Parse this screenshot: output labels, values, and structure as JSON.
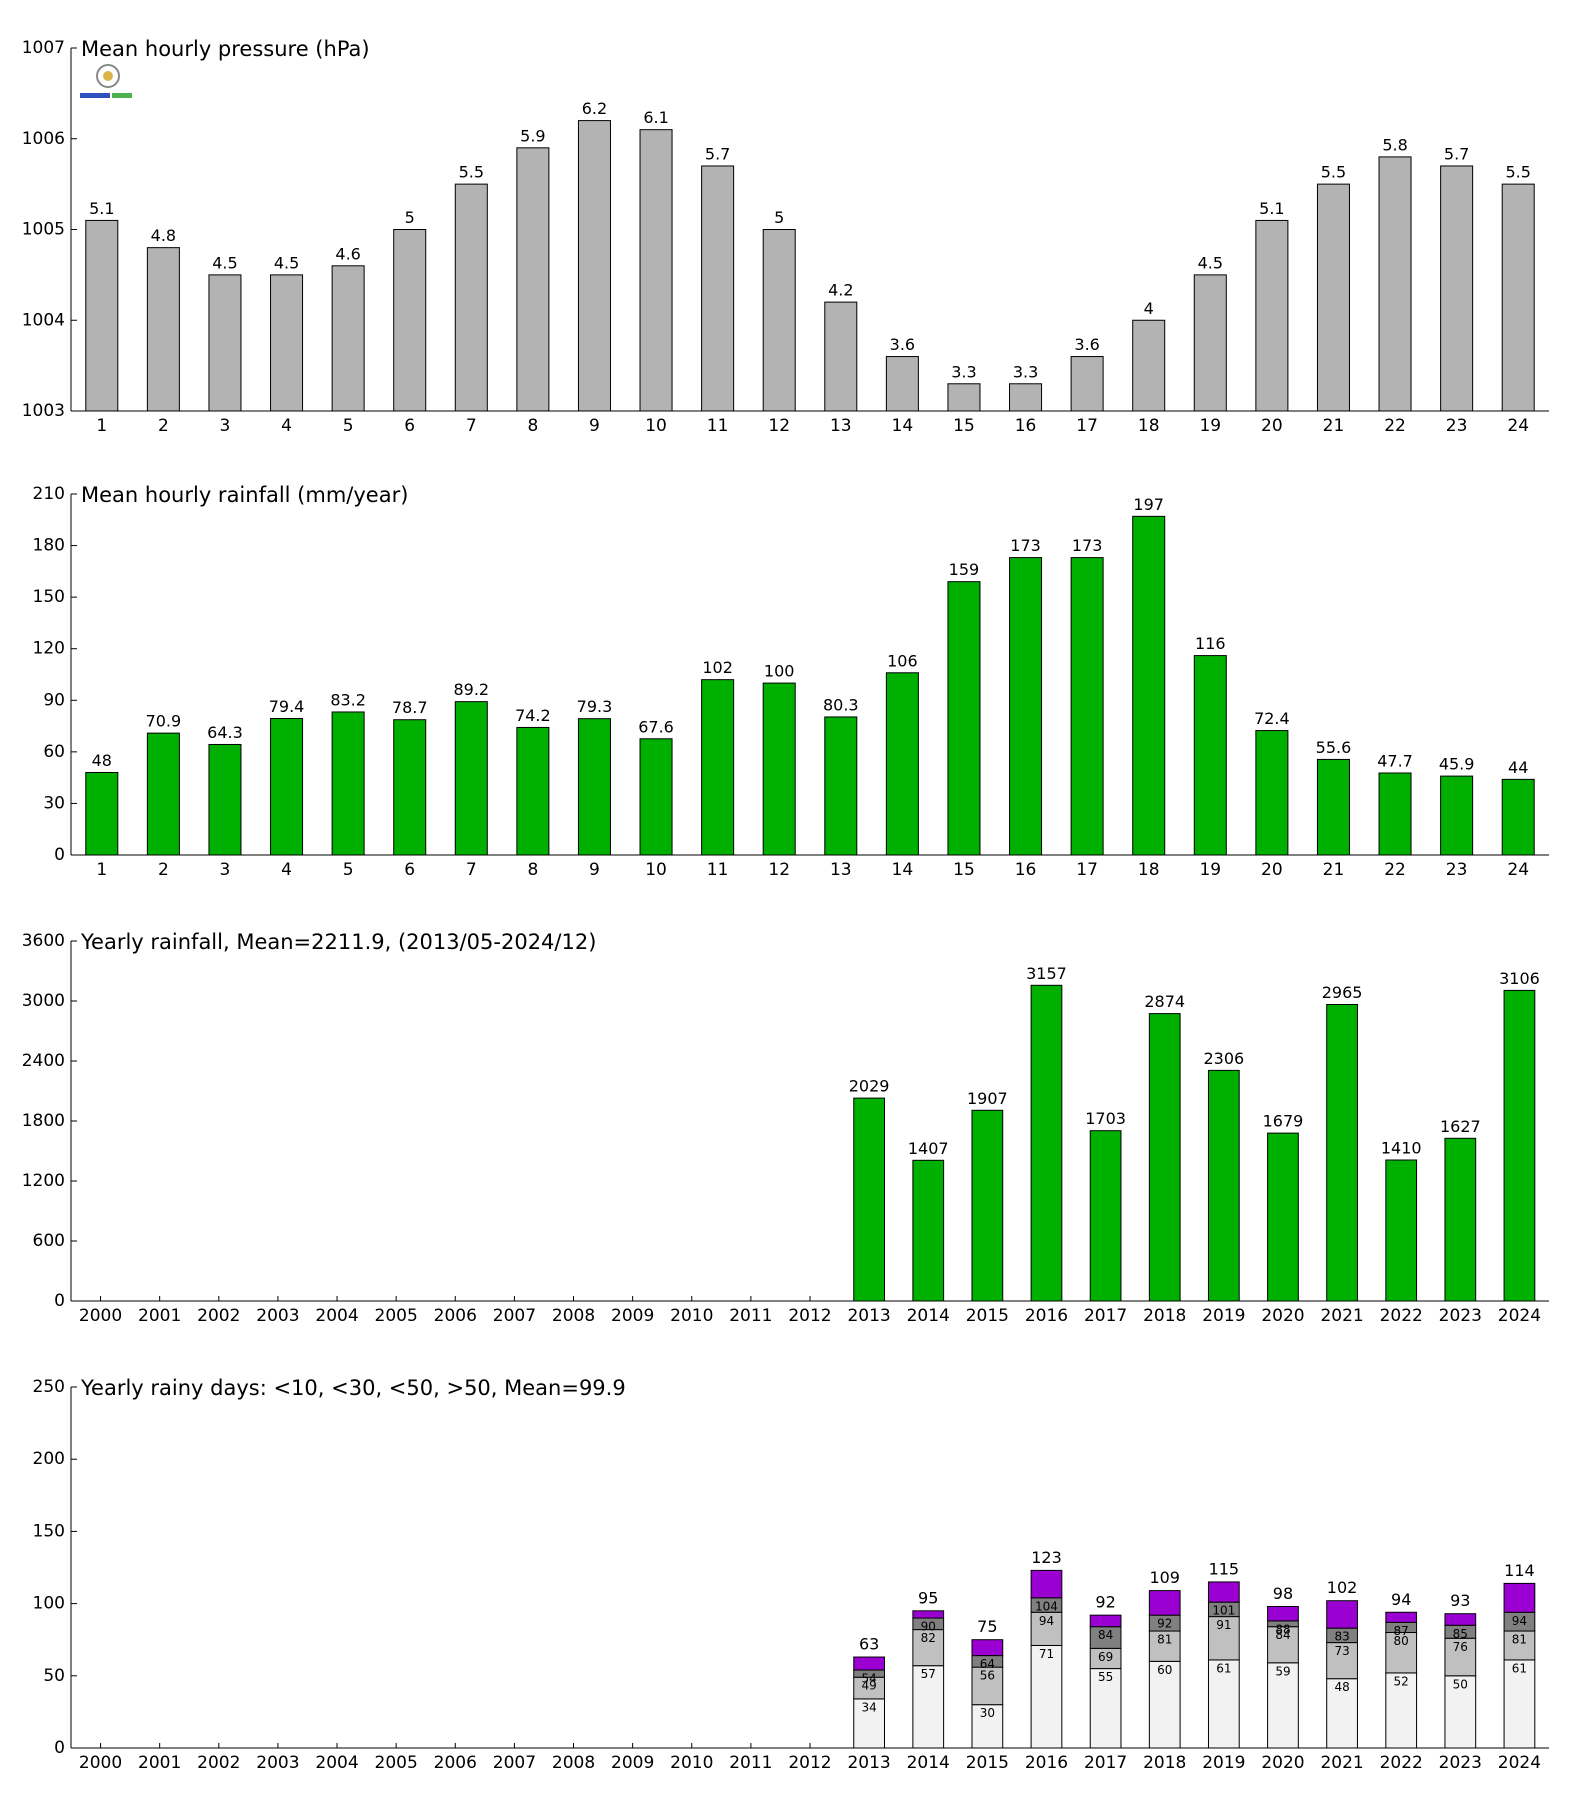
{
  "chart_data": [
    {
      "type": "bar",
      "title": "Mean hourly pressure (hPa)",
      "color": "#b3b3b3",
      "categories": [
        "1",
        "2",
        "3",
        "4",
        "5",
        "6",
        "7",
        "8",
        "9",
        "10",
        "11",
        "12",
        "13",
        "14",
        "15",
        "16",
        "17",
        "18",
        "19",
        "20",
        "21",
        "22",
        "23",
        "24"
      ],
      "values": [
        1005.1,
        1004.8,
        1004.5,
        1004.5,
        1004.6,
        1005,
        1005.5,
        1005.9,
        1006.2,
        1006.1,
        1005.7,
        1005,
        1004.2,
        1003.6,
        1003.3,
        1003.3,
        1003.6,
        1004,
        1004.5,
        1005.1,
        1005.5,
        1005.8,
        1005.7,
        1005.5
      ],
      "value_labels": [
        "5.1",
        "4.8",
        "4.5",
        "4.5",
        "4.6",
        "5",
        "5.5",
        "5.9",
        "6.2",
        "6.1",
        "5.7",
        "5",
        "4.2",
        "3.6",
        "3.3",
        "3.3",
        "3.6",
        "4",
        "4.5",
        "5.1",
        "5.5",
        "5.8",
        "5.7",
        "5.5"
      ],
      "ylim": [
        1003,
        1007
      ],
      "yticks": [
        1003,
        1004,
        1005,
        1006,
        1007
      ]
    },
    {
      "type": "bar",
      "title": "Mean hourly rainfall (mm/year)",
      "color": "#00b000",
      "categories": [
        "1",
        "2",
        "3",
        "4",
        "5",
        "6",
        "7",
        "8",
        "9",
        "10",
        "11",
        "12",
        "13",
        "14",
        "15",
        "16",
        "17",
        "18",
        "19",
        "20",
        "21",
        "22",
        "23",
        "24"
      ],
      "values": [
        48,
        70.9,
        64.3,
        79.4,
        83.2,
        78.7,
        89.2,
        74.2,
        79.3,
        67.6,
        102,
        100,
        80.3,
        106,
        159,
        173,
        173,
        197,
        116,
        72.4,
        55.6,
        47.7,
        45.9,
        44
      ],
      "ylim": [
        0,
        210
      ],
      "yticks": [
        0,
        30,
        60,
        90,
        120,
        150,
        180,
        210
      ]
    },
    {
      "type": "bar",
      "title": "Yearly rainfall, Mean=2211.9, (2013/05-2024/12)",
      "color": "#00b000",
      "categories": [
        "2000",
        "2001",
        "2002",
        "2003",
        "2004",
        "2005",
        "2006",
        "2007",
        "2008",
        "2009",
        "2010",
        "2011",
        "2012",
        "2013",
        "2014",
        "2015",
        "2016",
        "2017",
        "2018",
        "2019",
        "2020",
        "2021",
        "2022",
        "2023",
        "2024"
      ],
      "values": [
        null,
        null,
        null,
        null,
        null,
        null,
        null,
        null,
        null,
        null,
        null,
        null,
        null,
        2029,
        1407,
        1907,
        3157,
        1703,
        2874,
        2306,
        1679,
        2965,
        1410,
        1627,
        3106
      ],
      "ylim": [
        0,
        3600
      ],
      "yticks": [
        0,
        600,
        1200,
        1800,
        2400,
        3000,
        3600
      ]
    },
    {
      "type": "stacked_bar",
      "title": "Yearly rainy days: <10, <30, <50, >50, Mean=99.9",
      "categories": [
        "2000",
        "2001",
        "2002",
        "2003",
        "2004",
        "2005",
        "2006",
        "2007",
        "2008",
        "2009",
        "2010",
        "2011",
        "2012",
        "2013",
        "2014",
        "2015",
        "2016",
        "2017",
        "2018",
        "2019",
        "2020",
        "2021",
        "2022",
        "2023",
        "2024"
      ],
      "series": [
        {
          "color": "#f2f2f2",
          "values": [
            null,
            null,
            null,
            null,
            null,
            null,
            null,
            null,
            null,
            null,
            null,
            null,
            null,
            34,
            57,
            30,
            71,
            55,
            60,
            61,
            59,
            48,
            52,
            50,
            61
          ],
          "value_labels": [
            null,
            null,
            null,
            null,
            null,
            null,
            null,
            null,
            null,
            null,
            null,
            null,
            null,
            "34",
            "57",
            "30",
            "71",
            "55",
            "60",
            "61",
            "59",
            "48",
            "52",
            "50",
            "61"
          ]
        },
        {
          "color": "#c0c0c0",
          "values": [
            null,
            null,
            null,
            null,
            null,
            null,
            null,
            null,
            null,
            null,
            null,
            null,
            null,
            15,
            25,
            26,
            23,
            14,
            21,
            30,
            25,
            25,
            28,
            26,
            20
          ],
          "value_labels": [
            null,
            null,
            null,
            null,
            null,
            null,
            null,
            null,
            null,
            null,
            null,
            null,
            null,
            "49",
            "82",
            "56",
            "94",
            "69",
            "81",
            "91",
            "84",
            "73",
            "80",
            "76",
            "81"
          ]
        },
        {
          "color": "#808080",
          "values": [
            null,
            null,
            null,
            null,
            null,
            null,
            null,
            null,
            null,
            null,
            null,
            null,
            null,
            5,
            8,
            8,
            10,
            15,
            11,
            10,
            4,
            10,
            7,
            9,
            13
          ],
          "value_labels": [
            null,
            null,
            null,
            null,
            null,
            null,
            null,
            null,
            null,
            null,
            null,
            null,
            null,
            "54",
            "90",
            "64",
            "104",
            "84",
            "92",
            "101",
            "88",
            "83",
            "87",
            "85",
            "94"
          ]
        },
        {
          "color": "#9b00d3",
          "values": [
            null,
            null,
            null,
            null,
            null,
            null,
            null,
            null,
            null,
            null,
            null,
            null,
            null,
            9,
            5,
            11,
            19,
            8,
            17,
            14,
            10,
            19,
            7,
            8,
            20
          ]
        }
      ],
      "totals": [
        null,
        null,
        null,
        null,
        null,
        null,
        null,
        null,
        null,
        null,
        null,
        null,
        null,
        63,
        95,
        75,
        123,
        92,
        109,
        115,
        98,
        102,
        94,
        93,
        114
      ],
      "ylim": [
        0,
        250
      ],
      "yticks": [
        0,
        50,
        100,
        150,
        200,
        250
      ]
    }
  ]
}
